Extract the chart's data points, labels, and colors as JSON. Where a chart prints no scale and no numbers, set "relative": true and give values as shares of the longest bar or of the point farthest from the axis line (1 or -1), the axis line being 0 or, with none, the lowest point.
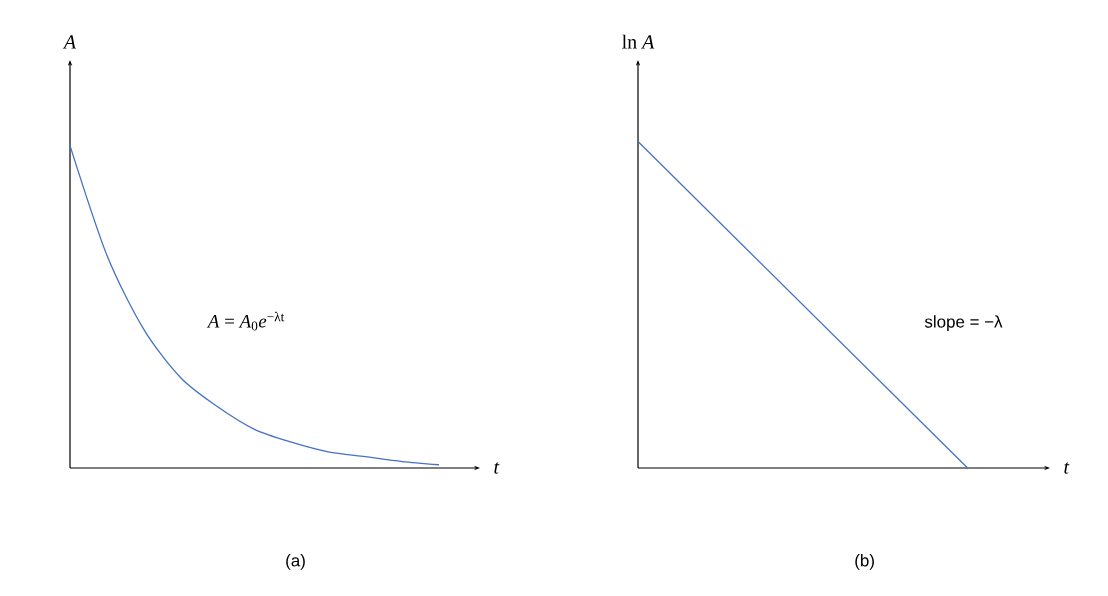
{
  "chart_data": [
    {
      "type": "line",
      "relative": true,
      "title": "(a)",
      "xlabel": "t",
      "ylabel": "*A*",
      "color": "#4472c4",
      "categories": [
        null,
        null,
        null,
        null,
        null,
        null,
        null,
        null,
        null,
        null,
        null
      ],
      "values": [
        1,
        0.66,
        0.43,
        0.28,
        0.19,
        0.12,
        0.08,
        0.05,
        0.035,
        0.02,
        0.01
      ],
      "annotations": [
        "*A* =  *A*$_{0}$*e*$^{−λt}$"
      ]
    },
    {
      "type": "line",
      "relative": true,
      "title": "(b)",
      "xlabel": "t",
      "ylabel": "ln *A*",
      "color": "#4472c4",
      "categories": [
        null,
        null
      ],
      "values": [
        1,
        0
      ],
      "annotations": [
        "slope = −λ"
      ]
    }
  ]
}
